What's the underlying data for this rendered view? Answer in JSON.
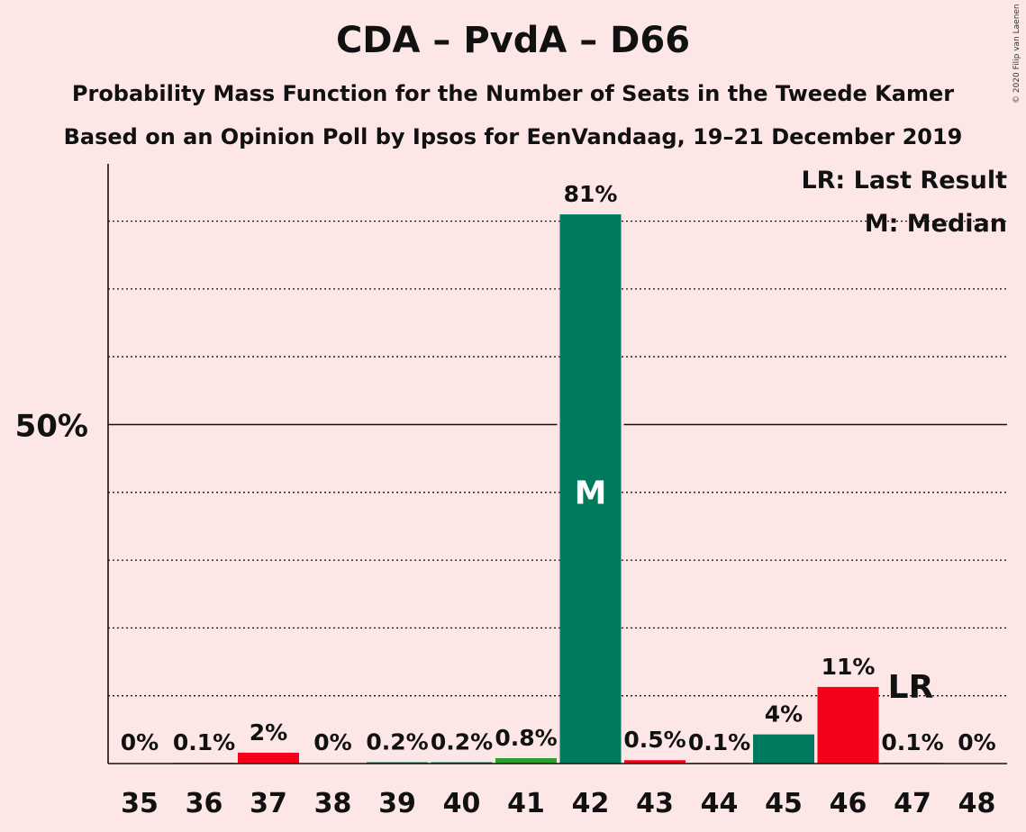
{
  "title": "CDA – PvdA – D66",
  "subtitle1": "Probability Mass Function for the Number of Seats in the Tweede Kamer",
  "subtitle2": "Based on an Opinion Poll by Ipsos for EenVandaag, 19–21 December 2019",
  "copyright": "© 2020 Filip van Laenen",
  "legend": {
    "lr": "LR: Last Result",
    "median": "M: Median"
  },
  "markers": {
    "median_label": "M",
    "lr_label": "LR",
    "median_seat": 42,
    "last_result_seat": 47
  },
  "colors": {
    "background": "#fce6e6",
    "green": "#007a5e",
    "red": "#f5001a",
    "light_green": "#2ca02c"
  },
  "chart_data": {
    "type": "bar",
    "categories": [
      "35",
      "36",
      "37",
      "38",
      "39",
      "40",
      "41",
      "42",
      "43",
      "44",
      "45",
      "46",
      "47",
      "48"
    ],
    "values": [
      0,
      0.1,
      1.6,
      0,
      0.2,
      0.2,
      0.8,
      81,
      0.5,
      0.1,
      4.3,
      11.3,
      0.1,
      0
    ],
    "labels": [
      "0%",
      "0.1%",
      "2%",
      "0%",
      "0.2%",
      "0.2%",
      "0.8%",
      "81%",
      "0.5%",
      "0.1%",
      "4%",
      "11%",
      "0.1%",
      "0%"
    ],
    "bar_colors": [
      "#007a5e",
      "#007a5e",
      "#f5001a",
      "#007a5e",
      "#007a5e",
      "#007a5e",
      "#2ca02c",
      "#007a5e",
      "#f5001a",
      "#007a5e",
      "#007a5e",
      "#f5001a",
      "#007a5e",
      "#007a5e"
    ],
    "ylim": [
      0,
      90
    ],
    "ytick_label": "50%",
    "ytick_value": 50,
    "gridlines": [
      10,
      20,
      30,
      40,
      60,
      70,
      80
    ],
    "grid": true,
    "legend_position": "top-right"
  }
}
